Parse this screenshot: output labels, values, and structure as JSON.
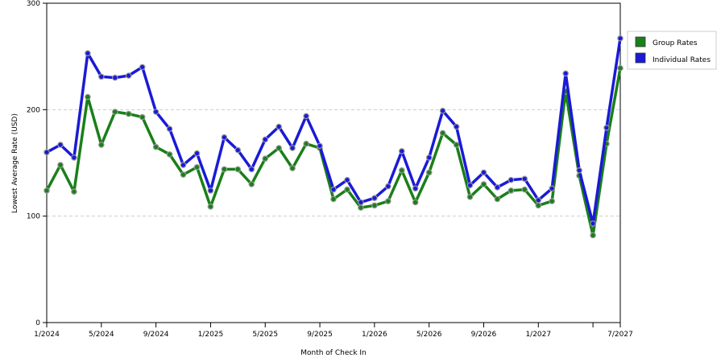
{
  "chart_data": {
    "type": "line",
    "title": "",
    "xlabel": "Month of Check In",
    "ylabel": "Lowest Average Rate (USD)",
    "ylim": [
      0,
      300
    ],
    "yticks": [
      0,
      100,
      200,
      300
    ],
    "grid": "horizontal-dashed",
    "legend_position": "right",
    "x_tick_labels": [
      {
        "index": 0,
        "label": "1/2024"
      },
      {
        "index": 4,
        "label": "5/2024"
      },
      {
        "index": 8,
        "label": "9/2024"
      },
      {
        "index": 12,
        "label": "1/2025"
      },
      {
        "index": 16,
        "label": "5/2025"
      },
      {
        "index": 20,
        "label": "9/2025"
      },
      {
        "index": 24,
        "label": "1/2026"
      },
      {
        "index": 28,
        "label": "5/2026"
      },
      {
        "index": 32,
        "label": "9/2026"
      },
      {
        "index": 36,
        "label": "1/2027"
      },
      {
        "index": 40,
        "label": ""
      },
      {
        "index": 42,
        "label": "7/2027"
      }
    ],
    "x": [
      "1/2024",
      "2/2024",
      "3/2024",
      "4/2024",
      "5/2024",
      "6/2024",
      "7/2024",
      "8/2024",
      "9/2024",
      "10/2024",
      "11/2024",
      "12/2024",
      "1/2025",
      "2/2025",
      "3/2025",
      "4/2025",
      "5/2025",
      "6/2025",
      "7/2025",
      "8/2025",
      "9/2025",
      "10/2025",
      "11/2025",
      "12/2025",
      "1/2026",
      "2/2026",
      "3/2026",
      "4/2026",
      "5/2026",
      "6/2026",
      "7/2026",
      "8/2026",
      "9/2026",
      "10/2026",
      "11/2026",
      "12/2026",
      "1/2027",
      "2/2027",
      "3/2027",
      "4/2027",
      "5/2027",
      "6/2027",
      "7/2027"
    ],
    "series": [
      {
        "name": "Group Rates",
        "color": "#1a7f1a",
        "values": [
          124,
          148,
          123,
          212,
          167,
          198,
          196,
          193,
          165,
          158,
          139,
          146,
          109,
          144,
          144,
          130,
          154,
          164,
          145,
          168,
          164,
          116,
          125,
          108,
          110,
          114,
          143,
          113,
          141,
          178,
          167,
          118,
          130,
          116,
          124,
          125,
          110,
          114,
          217,
          138,
          82,
          168,
          239
        ]
      },
      {
        "name": "Individual Rates",
        "color": "#1a1ad6",
        "values": [
          160,
          167,
          155,
          253,
          231,
          230,
          232,
          240,
          198,
          182,
          148,
          159,
          124,
          174,
          162,
          144,
          172,
          184,
          164,
          194,
          166,
          125,
          134,
          113,
          117,
          128,
          161,
          126,
          155,
          199,
          184,
          129,
          141,
          127,
          134,
          135,
          115,
          126,
          234,
          143,
          93,
          183,
          267
        ]
      }
    ]
  }
}
